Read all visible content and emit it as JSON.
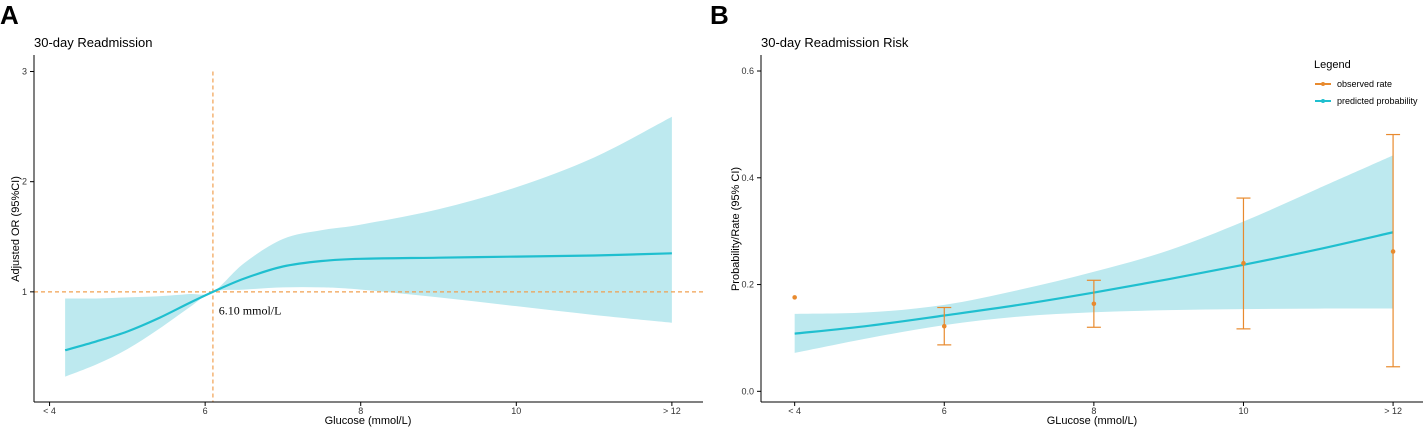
{
  "figure": {
    "panel_a_letter": "A",
    "panel_b_letter": "B"
  },
  "colors": {
    "band": "#bde9ef",
    "line": "#1fbfcf",
    "reference": "#f0a050",
    "observed": "#e88a2e",
    "axis": "#000000"
  },
  "chart_data": [
    {
      "id": "A",
      "type": "line",
      "title": "30-day Readmission",
      "xlabel": "Glucose (mmol/L)",
      "ylabel": "Adjusted OR (95%CI)",
      "xlim": [
        3.8,
        12.4
      ],
      "ylim": [
        0,
        3.15
      ],
      "x_ticks": [
        {
          "value": 4,
          "label": "< 4"
        },
        {
          "value": 6,
          "label": "6"
        },
        {
          "value": 8,
          "label": "8"
        },
        {
          "value": 10,
          "label": "10"
        },
        {
          "value": 12,
          "label": "> 12"
        }
      ],
      "y_ticks": [
        {
          "value": 1,
          "label": "1"
        },
        {
          "value": 2,
          "label": "2"
        },
        {
          "value": 3,
          "label": "3"
        }
      ],
      "reference_lines": {
        "vertical_x": 6.1,
        "vertical_top": 3.0,
        "horizontal_y": 1.0
      },
      "annotation": {
        "text": "6.10 mmol/L",
        "x": 6.15,
        "y": 0.83
      },
      "series": [
        {
          "name": "Adjusted OR",
          "x": [
            4.2,
            4.6,
            5.0,
            5.4,
            5.8,
            6.1,
            6.5,
            7.0,
            7.5,
            8.0,
            9.0,
            10.0,
            11.0,
            12.0
          ],
          "y": [
            0.47,
            0.55,
            0.64,
            0.76,
            0.9,
            1.0,
            1.12,
            1.23,
            1.28,
            1.3,
            1.31,
            1.32,
            1.33,
            1.35
          ],
          "lower": [
            0.23,
            0.34,
            0.48,
            0.66,
            0.86,
            1.0,
            1.02,
            1.04,
            1.04,
            1.02,
            0.95,
            0.87,
            0.79,
            0.72
          ],
          "upper": [
            0.94,
            0.94,
            0.95,
            0.96,
            0.98,
            1.0,
            1.26,
            1.48,
            1.56,
            1.61,
            1.75,
            1.95,
            2.22,
            2.59
          ]
        }
      ]
    },
    {
      "id": "B",
      "type": "line",
      "title": "30-day Readmission Risk",
      "xlabel": "GLucose (mmol/L)",
      "ylabel": "Probability/Rate (95% CI)",
      "xlim": [
        3.55,
        12.4
      ],
      "ylim": [
        -0.02,
        0.63
      ],
      "x_ticks": [
        {
          "value": 4,
          "label": "< 4"
        },
        {
          "value": 6,
          "label": "6"
        },
        {
          "value": 8,
          "label": "8"
        },
        {
          "value": 10,
          "label": "10"
        },
        {
          "value": 12,
          "label": "> 12"
        }
      ],
      "y_ticks": [
        {
          "value": 0.0,
          "label": "0.0"
        },
        {
          "value": 0.2,
          "label": "0.2"
        },
        {
          "value": 0.4,
          "label": "0.4"
        },
        {
          "value": 0.6,
          "label": "0.6"
        }
      ],
      "legend": {
        "title": "Legend",
        "position": "top-right",
        "items": [
          "observed rate",
          "predicted probability"
        ]
      },
      "predicted": {
        "name": "predicted probability",
        "x": [
          4.0,
          5.0,
          6.0,
          7.0,
          8.0,
          9.0,
          10.0,
          11.0,
          12.0
        ],
        "y": [
          0.108,
          0.123,
          0.142,
          0.162,
          0.185,
          0.21,
          0.237,
          0.266,
          0.298
        ],
        "lower": [
          0.072,
          0.1,
          0.124,
          0.14,
          0.148,
          0.152,
          0.154,
          0.155,
          0.155
        ],
        "upper": [
          0.145,
          0.148,
          0.162,
          0.19,
          0.224,
          0.264,
          0.318,
          0.38,
          0.442
        ]
      },
      "observed": {
        "name": "observed rate",
        "points": [
          {
            "x": 4.0,
            "y": 0.176,
            "lower": null,
            "upper": null
          },
          {
            "x": 6.0,
            "y": 0.122,
            "lower": 0.087,
            "upper": 0.157
          },
          {
            "x": 8.0,
            "y": 0.164,
            "lower": 0.12,
            "upper": 0.208
          },
          {
            "x": 10.0,
            "y": 0.24,
            "lower": 0.117,
            "upper": 0.362
          },
          {
            "x": 12.0,
            "y": 0.262,
            "lower": 0.046,
            "upper": 0.481
          }
        ]
      }
    }
  ]
}
